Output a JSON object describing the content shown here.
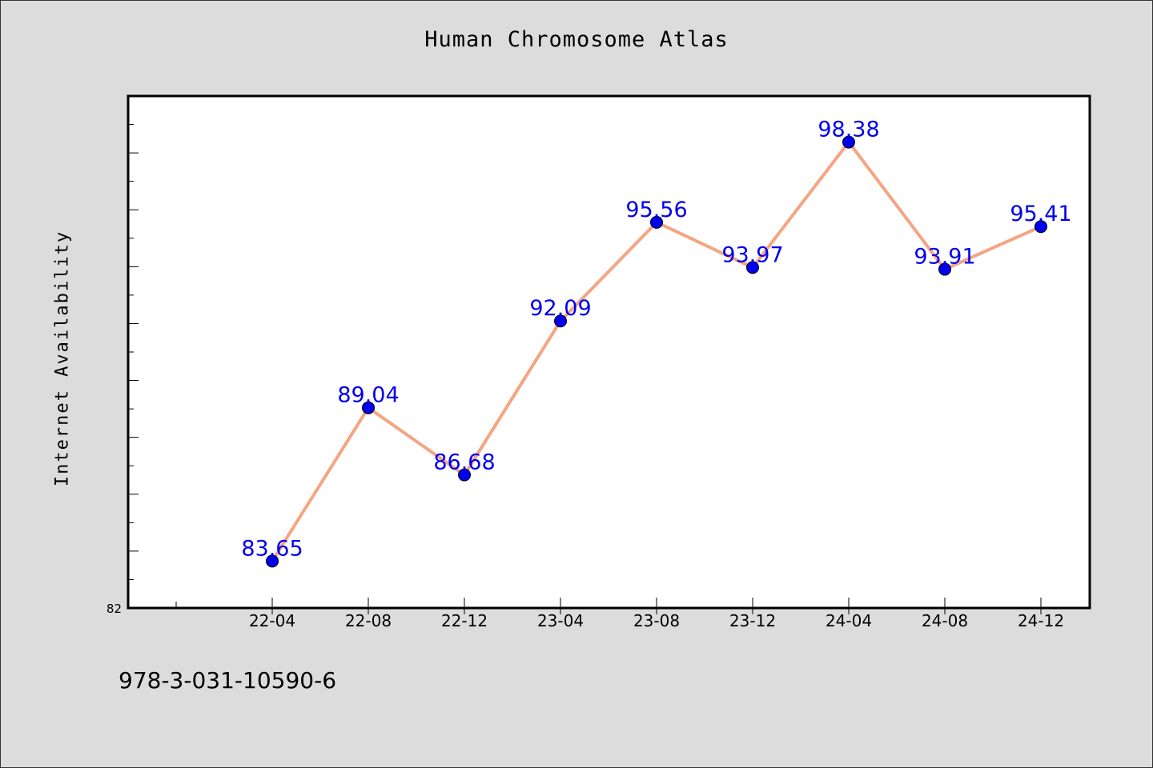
{
  "chart_data": {
    "type": "line",
    "title": "Human Chromosome Atlas",
    "xlabel": "",
    "ylabel": "Internet Availability",
    "categories": [
      "22-04",
      "22-08",
      "22-12",
      "23-04",
      "23-08",
      "23-12",
      "24-04",
      "24-08",
      "24-12"
    ],
    "series": [
      {
        "values": [
          83.65,
          89.04,
          86.68,
          92.09,
          95.56,
          93.97,
          98.38,
          93.91,
          95.41
        ],
        "labels": [
          "83.65",
          "89.04",
          "86.68",
          "92.09",
          "95.56",
          "93.97",
          "98.38",
          "93.91",
          "95.41"
        ],
        "line_color": "#f4a582",
        "marker_color": "#0000ee",
        "label_color": "#0000ee"
      }
    ],
    "ylim": [
      82,
      100
    ],
    "y_min_label": "82",
    "grid": false,
    "legend": "none"
  },
  "footer": {
    "isbn": "978-3-031-10590-6"
  },
  "colors": {
    "background": "#dcdcdc",
    "plot_background": "#ffffff",
    "axis": "#000000"
  }
}
